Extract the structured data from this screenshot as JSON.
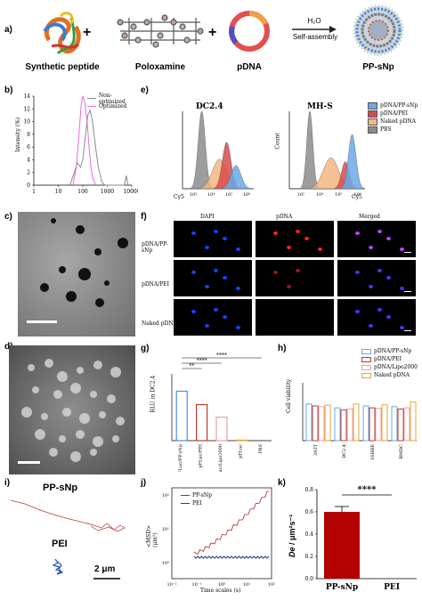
{
  "panel_labels": {
    "a": "a)",
    "b": "b)",
    "c": "c)",
    "d": "d)",
    "e": "e)",
    "f": "f)",
    "g": "g)",
    "h": "h)",
    "i": "i)",
    "j": "j)",
    "k": "k)"
  },
  "panel_a": {
    "captions": [
      "Synthetic peptide",
      "Poloxamine",
      "pDNA",
      "PP-sNp"
    ],
    "plus": "+",
    "arrow_top": "H₂O",
    "arrow_bottom": "Self-assembly"
  },
  "panel_b": {
    "ylabel": "Intensity (%)",
    "legend": [
      "Non-optimized",
      "Optimized"
    ],
    "colors": {
      "non_optimized": "#8a8a8a",
      "optimized": "#e36be3"
    },
    "chart_data": {
      "type": "line",
      "xscale": "log",
      "xlim": [
        1,
        10000
      ],
      "ylim": [
        0,
        14
      ],
      "x_ticks": [
        "1",
        "10",
        "100",
        "1000",
        "10000"
      ],
      "y_ticks": [
        "0",
        "2",
        "4",
        "6",
        "8",
        "10",
        "12",
        "14"
      ],
      "series": [
        {
          "name": "Non-optimized",
          "x": [
            30,
            45,
            60,
            80,
            100,
            130,
            160,
            200,
            250,
            320,
            420,
            600,
            800,
            5000,
            6000,
            7000
          ],
          "y": [
            0,
            2,
            3.5,
            2.8,
            4,
            8,
            11,
            11.8,
            10,
            6.5,
            3,
            0.5,
            0,
            0,
            1.5,
            0
          ]
        },
        {
          "name": "Optimized",
          "x": [
            40,
            55,
            70,
            85,
            100,
            120,
            150,
            180,
            220,
            270,
            350
          ],
          "y": [
            0,
            3,
            8,
            12.5,
            14,
            13,
            10,
            6,
            2.5,
            0.8,
            0
          ]
        }
      ]
    }
  },
  "panel_c": {
    "scale_bar": true
  },
  "panel_d": {
    "scale_bar": true
  },
  "panel_e": {
    "titles": [
      "DC2.4",
      "MH-S"
    ],
    "xlabel": "Cy5",
    "ylabel": "Count",
    "x_ticks": [
      "10³",
      "10⁴",
      "10⁵",
      "10⁶"
    ],
    "legend": [
      "pDNA/PP-sNp",
      "pDNA/PEI",
      "Naked pDNA",
      "PBS"
    ],
    "colors": {
      "pp_snp": "#6aa9e8",
      "pei": "#d94b4b",
      "naked": "#f5b780",
      "pbs": "#8c8c8c"
    }
  },
  "panel_f": {
    "columns": [
      "DAPI",
      "pDNA",
      "Merged"
    ],
    "rows": [
      "pDNA/PP-sNp",
      "pDNA/PEI",
      "Naked pDNA"
    ]
  },
  "panel_g": {
    "ylabel": "RLU in DC2.4",
    "significance": [
      "****",
      "**",
      "****"
    ],
    "colors": [
      "#4a90d9",
      "#c0392b",
      "#e8a0a0",
      "#f0a030",
      "#222222"
    ],
    "chart_data": {
      "type": "bar",
      "categories": [
        "pFLuc/PP-sNp",
        "pFLuc/PEI",
        "pFLuc/Lipo2000",
        "pFLuc",
        "PBS"
      ],
      "values": [
        185,
        135,
        88,
        2,
        0
      ],
      "ylim": [
        0,
        250
      ]
    }
  },
  "panel_h": {
    "ylabel": "Cell viability",
    "legend": [
      "pDNA/PP-sNp",
      "pDNA/PEI",
      "pDNA/Lipo2000",
      "Naked pDNA"
    ],
    "colors": [
      "#6aa9e8",
      "#c0392b",
      "#e8a0a0",
      "#f0a030"
    ],
    "chart_data": {
      "type": "bar",
      "categories": [
        "293T",
        "DC2.4",
        "16HBE",
        "BMDC"
      ],
      "series": [
        {
          "name": "pDNA/PP-sNp",
          "values": [
            95,
            85,
            90,
            88
          ]
        },
        {
          "name": "pDNA/PEI",
          "values": [
            90,
            80,
            85,
            82
          ]
        },
        {
          "name": "pDNA/Lipo2000",
          "values": [
            88,
            82,
            84,
            85
          ]
        },
        {
          "name": "Naked pDNA",
          "values": [
            92,
            95,
            93,
            100
          ]
        }
      ],
      "ylim": [
        0,
        150
      ]
    }
  },
  "panel_i": {
    "labels": [
      "PP-sNp",
      "PEI"
    ],
    "scale": "2 μm"
  },
  "panel_j": {
    "xlabel": "Time scales (s)",
    "ylabel": "<MSD> (μm²)",
    "legend": [
      "PP-sNp",
      "PEI"
    ],
    "colors": [
      "#b22222",
      "#1f3b99"
    ],
    "x_ticks": [
      "10⁻²",
      "10⁻¹",
      "10⁰",
      "10¹",
      "10²"
    ],
    "y_ticks": [
      "10⁰",
      "10¹",
      "10²"
    ]
  },
  "panel_k": {
    "ylabel_de": "De",
    "ylabel_unit": " / μm²s⁻¹",
    "significance": "****",
    "y_ticks": [
      "0.0",
      "0.2",
      "0.4",
      "0.6",
      "0.8"
    ],
    "bar_color": "#b30000",
    "chart_data": {
      "type": "bar",
      "categories": [
        "PP-sNp",
        "PEI"
      ],
      "values": [
        0.6,
        0.0
      ],
      "ylim": [
        0,
        0.8
      ]
    }
  }
}
